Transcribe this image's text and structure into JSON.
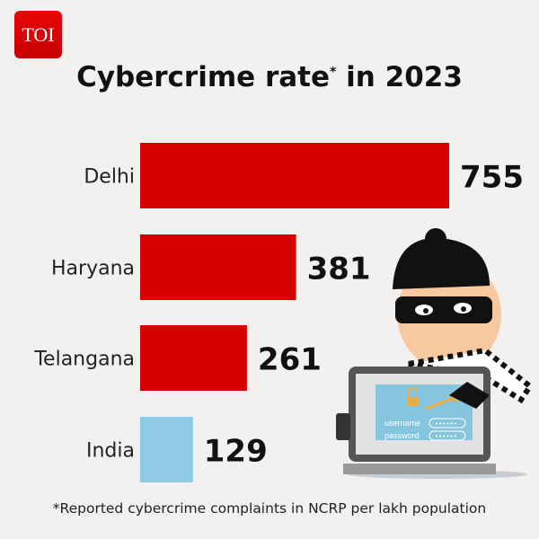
{
  "logo": "TOI",
  "title": {
    "main": "Cybercrime rate",
    "mark": "*",
    "suffix": " in 2023"
  },
  "footnote": "*Reported cybercrime complaints in NCRP per lakh population",
  "illustration": {
    "username_label": "username",
    "password_label": "password",
    "password_dots": "••••••"
  },
  "chart_data": {
    "type": "bar",
    "orientation": "horizontal",
    "title": "Cybercrime rate* in 2023",
    "categories": [
      "Delhi",
      "Haryana",
      "Telangana",
      "India"
    ],
    "values": [
      755,
      381,
      261,
      129
    ],
    "colors": [
      "#d60000",
      "#d60000",
      "#d60000",
      "#8ecae3"
    ],
    "xlim": [
      0,
      755
    ],
    "grid": false
  }
}
